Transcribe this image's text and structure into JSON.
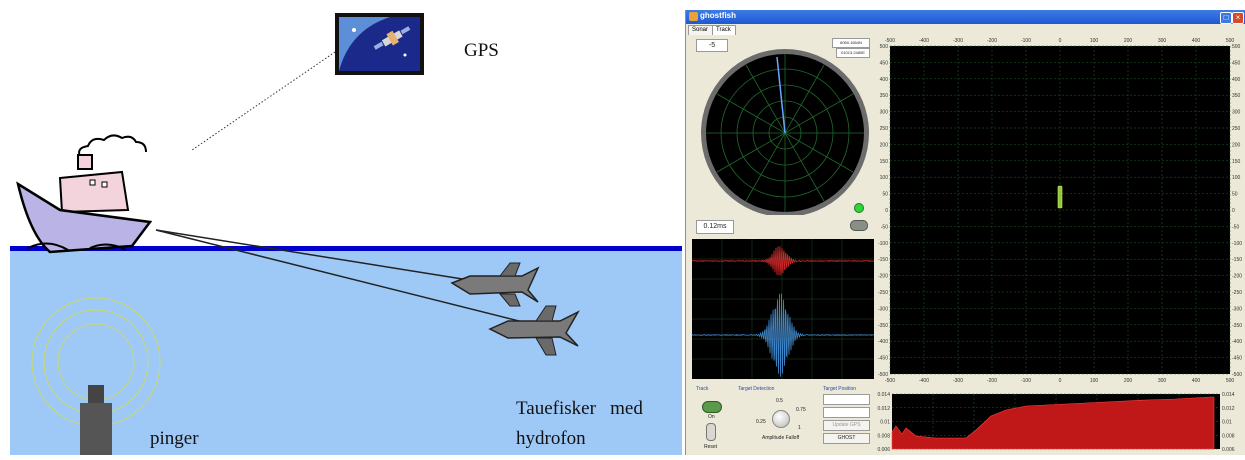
{
  "illustration": {
    "gps_label": "GPS",
    "pinger_label": "pinger",
    "towfish_label_line1": "Tauefisker   med",
    "towfish_label_line2": "hydrofon"
  },
  "window": {
    "title": "ghostfish",
    "tabs": [
      {
        "label": "Sonar"
      },
      {
        "label": "Track"
      }
    ]
  },
  "sonar": {
    "bearing_value": "-5",
    "readout_top": "6050.1654N",
    "readout_bottom": "01013.2480E",
    "time_value": "0.12ms"
  },
  "track_plot": {
    "x_ticks": [
      "-500",
      "-400",
      "-300",
      "-200",
      "-100",
      "0",
      "100",
      "200",
      "300",
      "400",
      "500"
    ],
    "y_ticks": [
      "500",
      "450",
      "400",
      "350",
      "300",
      "250",
      "200",
      "150",
      "100",
      "50",
      "0",
      "-50",
      "-100",
      "-150",
      "-200",
      "-250",
      "-300",
      "-350",
      "-400",
      "-450",
      "-500"
    ]
  },
  "controls": {
    "track_title": "Track",
    "on_label": "On",
    "reset_label": "Reset",
    "target_detection_title": "Target Detection",
    "knob_ticks": {
      "a": "0.5",
      "b": "0.75",
      "c": "0.25",
      "d": "1"
    },
    "knob_label": "Amplitude Falloff",
    "target_position_title": "Target Position",
    "update_gps_button": "Update GPS",
    "ghost_button": "GHOST"
  },
  "bottom_chart": {
    "y_ticks": [
      "0.014",
      "0.012",
      "0.01",
      "0.008",
      "0.006"
    ]
  },
  "colors": {
    "panel_bg": "#000000",
    "grid": "#1f5f2a",
    "red_wave": "#d02a2a",
    "blue_wave": "#3f86c8",
    "fill_red": "#c01818",
    "water": "#9ec9f7",
    "surface": "#0000cc"
  }
}
